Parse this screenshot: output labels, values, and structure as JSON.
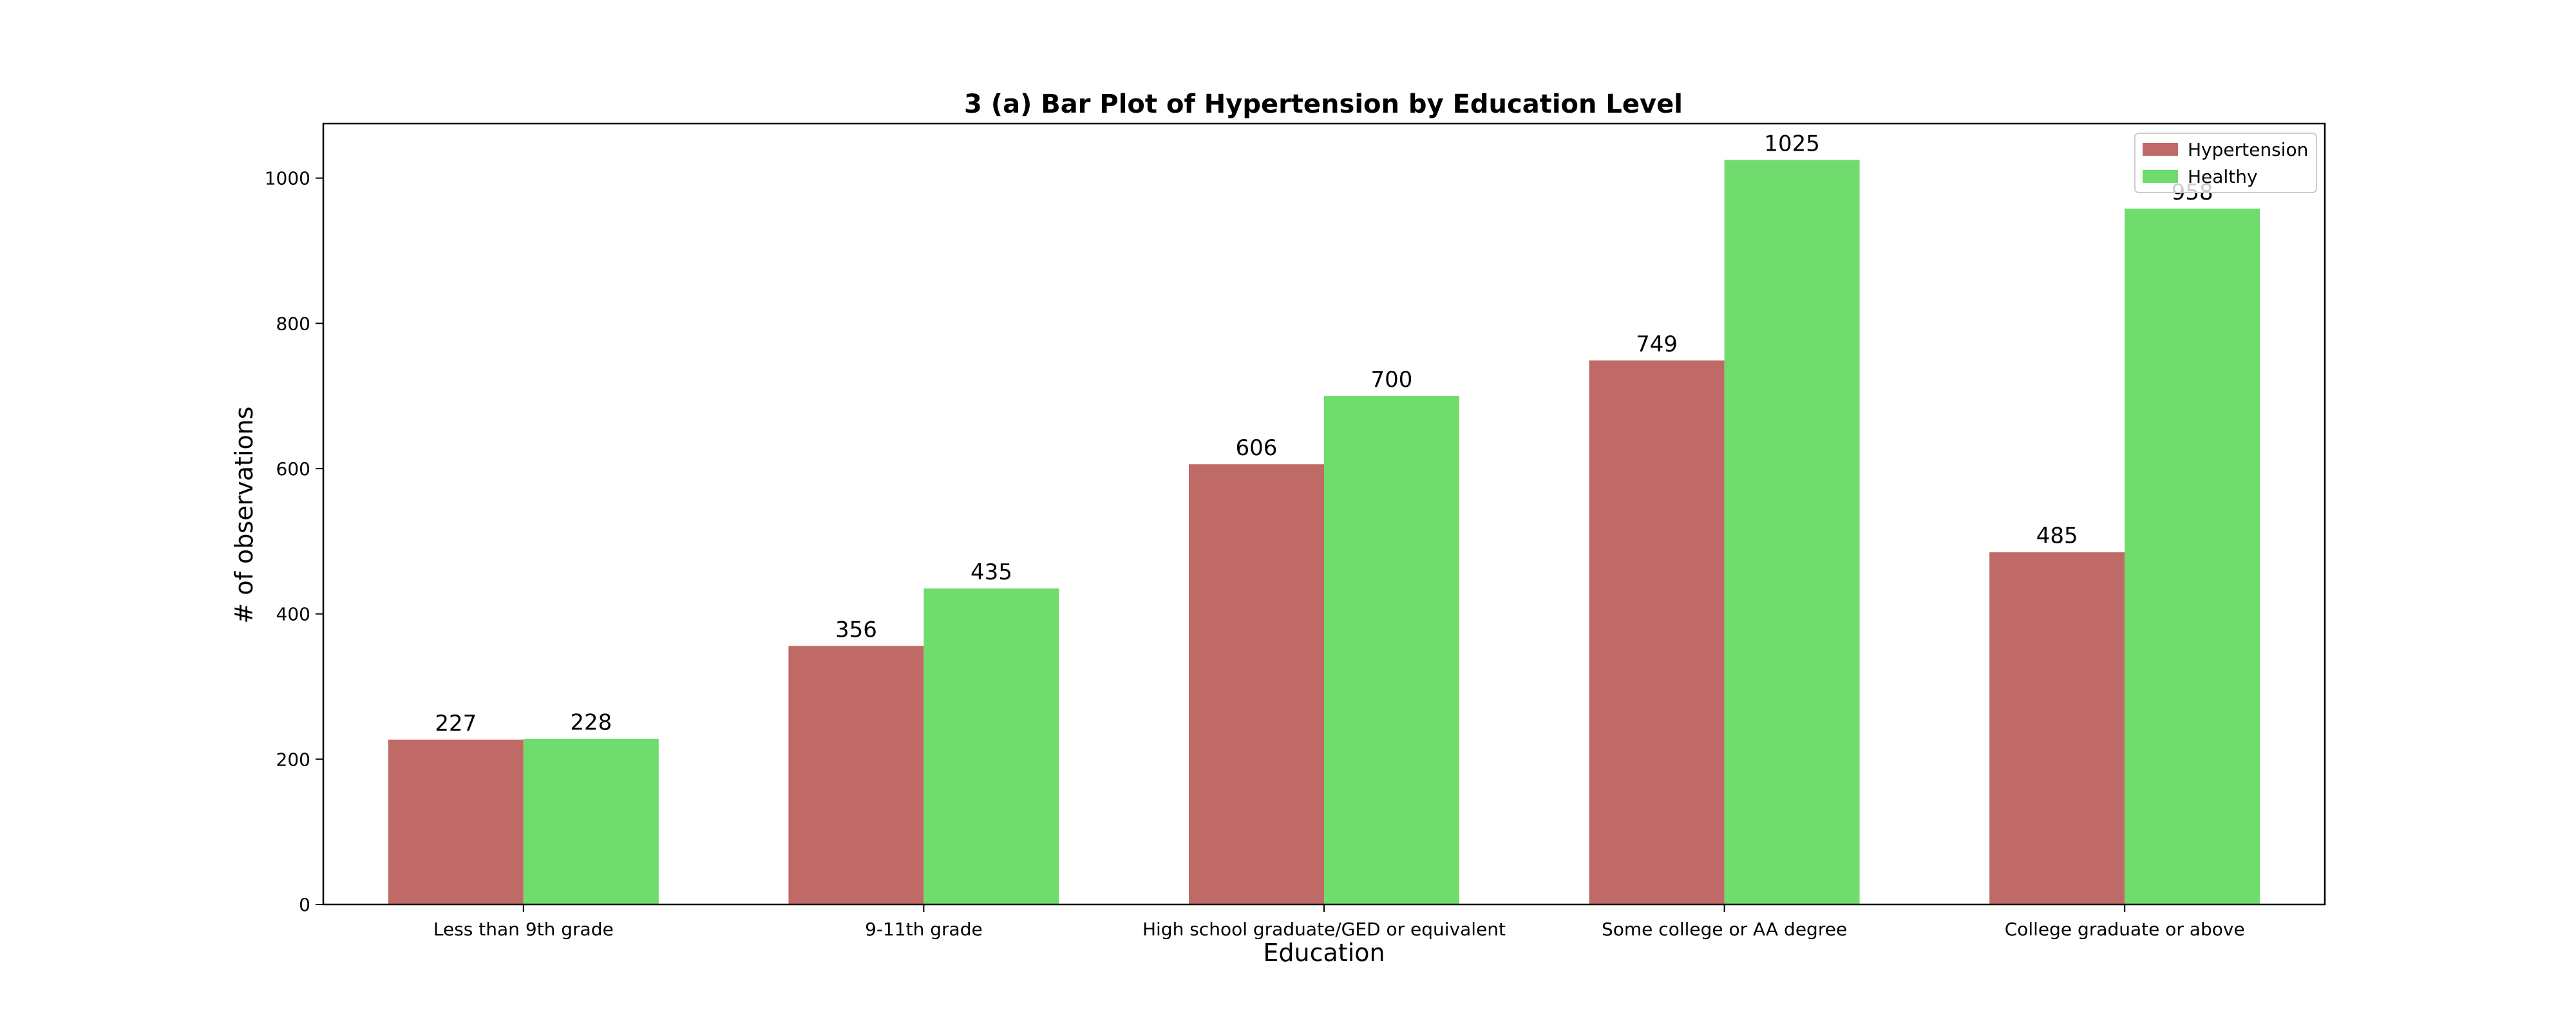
{
  "chart_data": {
    "type": "bar",
    "title": "3 (a) Bar Plot of Hypertension by Education Level",
    "xlabel": "Education",
    "ylabel": "# of observations",
    "categories": [
      "Less than 9th grade",
      "9-11th grade",
      "High school graduate/GED or equivalent",
      "Some college or AA degree",
      "College graduate or above"
    ],
    "series": [
      {
        "name": "Hypertension",
        "color": "#c06a68",
        "values": [
          227,
          356,
          606,
          749,
          485
        ]
      },
      {
        "name": "Healthy",
        "color": "#6fdc6d",
        "values": [
          228,
          435,
          700,
          1025,
          958
        ]
      }
    ],
    "data_labels": [
      [
        "227",
        "356",
        "606",
        "749",
        "485"
      ],
      [
        "228",
        "435",
        "700",
        "1025",
        "958"
      ]
    ],
    "ylim": [
      0,
      1075
    ],
    "yticks": [
      0,
      200,
      400,
      600,
      800,
      1000
    ],
    "grid": false,
    "legend_position": "top-right"
  }
}
